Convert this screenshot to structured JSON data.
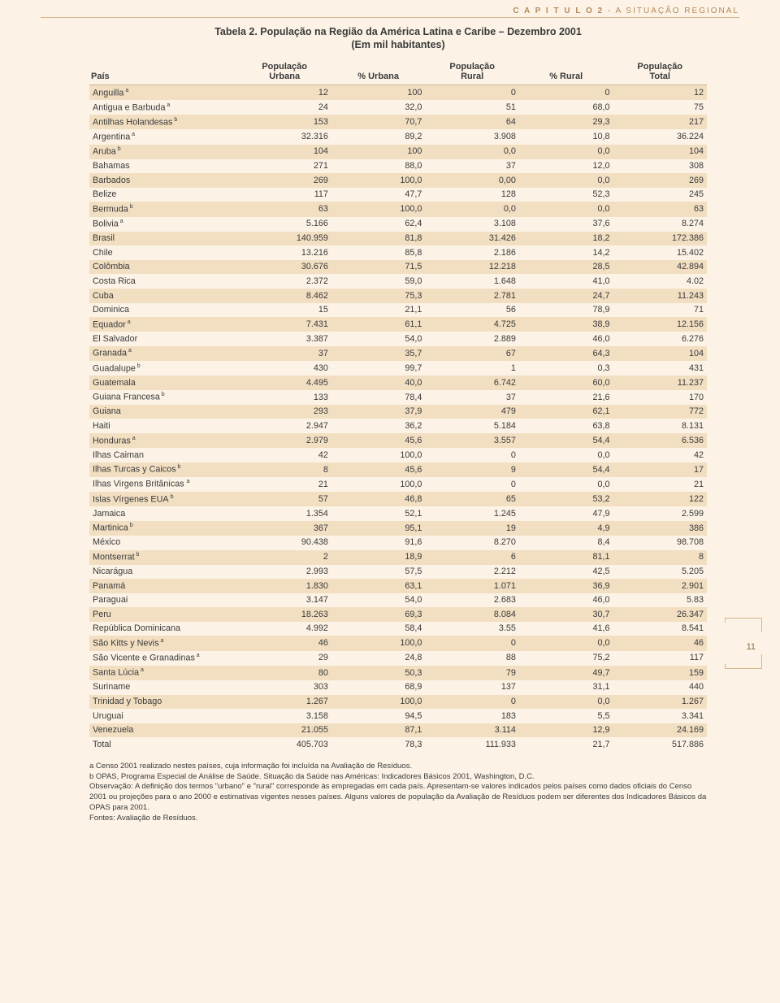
{
  "header": {
    "chapter": "C A P I T U L O  2",
    "dash": " - ",
    "section": "A SITUAÇÃO REGIONAL"
  },
  "title": "Tabela 2. População na Região da América Latina e Caribe – Dezembro 2001",
  "subtitle": "(Em mil habitantes)",
  "columns": {
    "c0": "País",
    "c1a": "População",
    "c1b": "Urbana",
    "c2": "% Urbana",
    "c3a": "População",
    "c3b": "Rural",
    "c4": "% Rural",
    "c5a": "População",
    "c5b": "Total"
  },
  "rows": [
    {
      "n": "Anguilla",
      "s": "a",
      "u": "12",
      "pu": "100",
      "r": "0",
      "pr": "0",
      "t": "12",
      "sh": 1
    },
    {
      "n": "Antigua e Barbuda",
      "s": "a",
      "u": "24",
      "pu": "32,0",
      "r": "51",
      "pr": "68,0",
      "t": "75",
      "sh": 0
    },
    {
      "n": "Antilhas Holandesas",
      "s": "b",
      "u": "153",
      "pu": "70,7",
      "r": "64",
      "pr": "29,3",
      "t": "217",
      "sh": 1
    },
    {
      "n": "Argentina",
      "s": "a",
      "u": "32.316",
      "pu": "89,2",
      "r": "3.908",
      "pr": "10,8",
      "t": "36.224",
      "sh": 0
    },
    {
      "n": "Aruba",
      "s": "b",
      "u": "104",
      "pu": "100",
      "r": "0,0",
      "pr": "0,0",
      "t": "104",
      "sh": 1
    },
    {
      "n": "Bahamas",
      "s": "",
      "u": "271",
      "pu": "88,0",
      "r": "37",
      "pr": "12,0",
      "t": "308",
      "sh": 0
    },
    {
      "n": "Barbados",
      "s": "",
      "u": "269",
      "pu": "100,0",
      "r": "0,00",
      "pr": "0,0",
      "t": "269",
      "sh": 1
    },
    {
      "n": "Belize",
      "s": "",
      "u": "117",
      "pu": "47,7",
      "r": "128",
      "pr": "52,3",
      "t": "245",
      "sh": 0
    },
    {
      "n": "Bermuda",
      "s": "b",
      "u": "63",
      "pu": "100,0",
      "r": "0,0",
      "pr": "0,0",
      "t": "63",
      "sh": 1
    },
    {
      "n": "Bolivia",
      "s": "a",
      "u": "5.166",
      "pu": "62,4",
      "r": "3.108",
      "pr": "37,6",
      "t": "8.274",
      "sh": 0
    },
    {
      "n": "Brasil",
      "s": "",
      "u": "140.959",
      "pu": "81,8",
      "r": "31.426",
      "pr": "18,2",
      "t": "172.386",
      "sh": 1
    },
    {
      "n": "Chile",
      "s": "",
      "u": "13.216",
      "pu": "85,8",
      "r": "2.186",
      "pr": "14,2",
      "t": "15.402",
      "sh": 0
    },
    {
      "n": "Colômbia",
      "s": "",
      "u": "30.676",
      "pu": "71,5",
      "r": "12.218",
      "pr": "28,5",
      "t": "42.894",
      "sh": 1
    },
    {
      "n": "Costa Rica",
      "s": "",
      "u": "2.372",
      "pu": "59,0",
      "r": "1.648",
      "pr": "41,0",
      "t": "4.02",
      "sh": 0
    },
    {
      "n": "Cuba",
      "s": "",
      "u": "8.462",
      "pu": "75,3",
      "r": "2.781",
      "pr": "24,7",
      "t": "11.243",
      "sh": 1
    },
    {
      "n": "Dominica",
      "s": "",
      "u": "15",
      "pu": "21,1",
      "r": "56",
      "pr": "78,9",
      "t": "71",
      "sh": 0
    },
    {
      "n": "Equador",
      "s": "a",
      "u": "7.431",
      "pu": "61,1",
      "r": "4.725",
      "pr": "38,9",
      "t": "12.156",
      "sh": 1
    },
    {
      "n": "El Salvador",
      "s": "",
      "u": "3.387",
      "pu": "54,0",
      "r": "2.889",
      "pr": "46,0",
      "t": "6.276",
      "sh": 0
    },
    {
      "n": "Granada",
      "s": "a",
      "u": "37",
      "pu": "35,7",
      "r": "67",
      "pr": "64,3",
      "t": "104",
      "sh": 1
    },
    {
      "n": "Guadalupe",
      "s": "b",
      "u": "430",
      "pu": "99,7",
      "r": "1",
      "pr": "0,3",
      "t": "431",
      "sh": 0
    },
    {
      "n": "Guatemala",
      "s": "",
      "u": "4.495",
      "pu": "40,0",
      "r": "6.742",
      "pr": "60,0",
      "t": "11.237",
      "sh": 1
    },
    {
      "n": "Guiana Francesa",
      "s": "b",
      "u": "133",
      "pu": "78,4",
      "r": "37",
      "pr": "21,6",
      "t": "170",
      "sh": 0
    },
    {
      "n": "Guiana",
      "s": "",
      "u": "293",
      "pu": "37,9",
      "r": "479",
      "pr": "62,1",
      "t": "772",
      "sh": 1
    },
    {
      "n": "Haiti",
      "s": "",
      "u": "2.947",
      "pu": "36,2",
      "r": "5.184",
      "pr": "63,8",
      "t": "8.131",
      "sh": 0
    },
    {
      "n": "Honduras",
      "s": "a",
      "u": "2.979",
      "pu": "45,6",
      "r": "3.557",
      "pr": "54,4",
      "t": "6.536",
      "sh": 1
    },
    {
      "n": "Ilhas Caiman",
      "s": "",
      "u": "42",
      "pu": "100,0",
      "r": "0",
      "pr": "0,0",
      "t": "42",
      "sh": 0
    },
    {
      "n": "Ilhas Turcas y Caicos",
      "s": "b",
      "u": "8",
      "pu": "45,6",
      "r": "9",
      "pr": "54,4",
      "t": "17",
      "sh": 1
    },
    {
      "n": "Ilhas Virgens Britânicas ",
      "s": "a",
      "u": "21",
      "pu": "100,0",
      "r": "0",
      "pr": "0,0",
      "t": "21",
      "sh": 0
    },
    {
      "n": "Islas Vírgenes EUA",
      "s": "b",
      "u": "57",
      "pu": "46,8",
      "r": "65",
      "pr": "53,2",
      "t": "122",
      "sh": 1
    },
    {
      "n": "Jamaica",
      "s": "",
      "u": "1.354",
      "pu": "52,1",
      "r": "1.245",
      "pr": "47,9",
      "t": "2.599",
      "sh": 0
    },
    {
      "n": "Martinica",
      "s": "b",
      "u": "367",
      "pu": "95,1",
      "r": "19",
      "pr": "4,9",
      "t": "386",
      "sh": 1
    },
    {
      "n": "México",
      "s": "",
      "u": "90.438",
      "pu": "91,6",
      "r": "8.270",
      "pr": "8,4",
      "t": "98.708",
      "sh": 0
    },
    {
      "n": "Montserrat",
      "s": "b",
      "u": "2",
      "pu": "18,9",
      "r": "6",
      "pr": "81,1",
      "t": "8",
      "sh": 1
    },
    {
      "n": "Nicarágua",
      "s": "",
      "u": "2.993",
      "pu": "57,5",
      "r": "2.212",
      "pr": "42,5",
      "t": "5.205",
      "sh": 0
    },
    {
      "n": "Panamá",
      "s": "",
      "u": "1.830",
      "pu": "63,1",
      "r": "1.071",
      "pr": "36,9",
      "t": "2.901",
      "sh": 1
    },
    {
      "n": "Paraguai",
      "s": "",
      "u": "3.147",
      "pu": "54,0",
      "r": "2.683",
      "pr": "46,0",
      "t": "5.83",
      "sh": 0
    },
    {
      "n": "Peru",
      "s": "",
      "u": "18.263",
      "pu": "69,3",
      "r": "8.084",
      "pr": "30,7",
      "t": "26.347",
      "sh": 1
    },
    {
      "n": "República Dominicana",
      "s": "",
      "u": "4.992",
      "pu": "58,4",
      "r": "3.55",
      "pr": "41,6",
      "t": "8.541",
      "sh": 0
    },
    {
      "n": "São Kitts y Nevis",
      "s": "a",
      "u": "46",
      "pu": "100,0",
      "r": "0",
      "pr": "0,0",
      "t": "46",
      "sh": 1
    },
    {
      "n": "São Vicente e Granadinas",
      "s": "a",
      "u": "29",
      "pu": "24,8",
      "r": "88",
      "pr": "75,2",
      "t": "117",
      "sh": 0
    },
    {
      "n": "Santa Lúcia",
      "s": "a",
      "u": "80",
      "pu": "50,3",
      "r": "79",
      "pr": "49,7",
      "t": "159",
      "sh": 1
    },
    {
      "n": "Suriname",
      "s": "",
      "u": "303",
      "pu": "68,9",
      "r": "137",
      "pr": "31,1",
      "t": "440",
      "sh": 0
    },
    {
      "n": "Trinidad y Tobago",
      "s": "",
      "u": "1.267",
      "pu": "100,0",
      "r": "0",
      "pr": "0,0",
      "t": "1.267",
      "sh": 1
    },
    {
      "n": "Uruguai",
      "s": "",
      "u": "3.158",
      "pu": "94,5",
      "r": "183",
      "pr": "5,5",
      "t": "3.341",
      "sh": 0
    },
    {
      "n": "Venezuela",
      "s": "",
      "u": "21.055",
      "pu": "87,1",
      "r": "3.114",
      "pr": "12,9",
      "t": "24.169",
      "sh": 1
    },
    {
      "n": "Total",
      "s": "",
      "u": "405.703",
      "pu": "78,3",
      "r": "111.933",
      "pr": "21,7",
      "t": "517.886",
      "sh": 0
    }
  ],
  "footnotes": [
    "a Censo 2001 realizado nestes países, cuja informação foi incluída na Avaliação de Resíduos.",
    "b OPAS, Programa Especial de Análise de Saúde. Situação da Saúde nas Américas: Indicadores Básicos 2001, Washington, D.C.",
    "Observação: A definição dos termos \"urbano\" e \"rural\" corresponde às empregadas em cada país. Apresentam-se valores indicados pelos países como dados oficiais do Censo 2001 ou projeções para o ano 2000 e estimativas vigentes nesses países. Alguns valores de população da Avaliação de Resíduos podem ser diferentes dos Indicadores Básicos da OPAS para 2001.",
    "Fontes: Avaliação de Resíduos."
  ],
  "pageNumber": "11",
  "colors": {
    "bg": "#fcf3e6",
    "shade": "#f2dfc2",
    "rule": "#d6b48a",
    "headerText": "#b58a5a"
  }
}
